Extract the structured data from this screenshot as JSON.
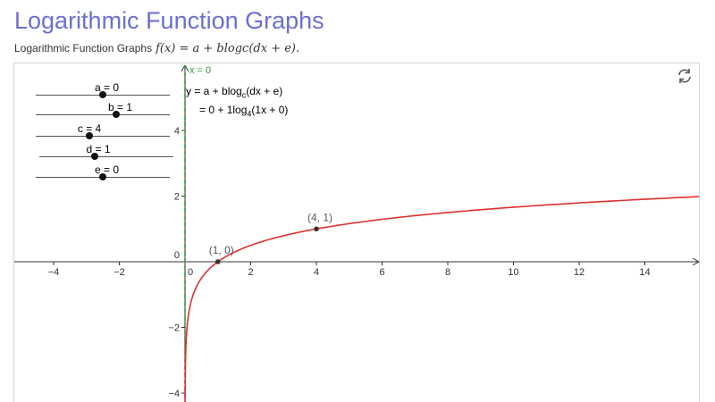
{
  "page": {
    "title": "Logarithmic Function Graphs",
    "subtitle_text": "Logarithmic Function Graphs",
    "subtitle_formula": "f(x) = a + blogc(dx + e)."
  },
  "applet": {
    "refresh_icon": "refresh-icon",
    "equation_line_1_prefix": "y = a + blog",
    "equation_line_1_sub": "c",
    "equation_line_1_suffix": "(dx + e)",
    "equation_line_2_prefix": "= 0 + 1log",
    "equation_line_2_sub": "4",
    "equation_line_2_suffix": "(1x + 0)",
    "sliders": [
      {
        "label": "a = 0",
        "value": 0
      },
      {
        "label": "b = 1",
        "value": 1
      },
      {
        "label": "c = 4",
        "value": 4
      },
      {
        "label": "d = 1",
        "value": 1
      },
      {
        "label": "e = 0",
        "value": 0
      }
    ],
    "asymptote_label": "x = 0",
    "colors": {
      "curve": "#e03030",
      "asymptote": "#2e9a2e",
      "title": "#6b6fd4"
    }
  },
  "chart_data": {
    "type": "line",
    "function": "y = 0 + 1*log4(1x + 0)",
    "xlim": [
      -5,
      15.5
    ],
    "ylim": [
      -4.3,
      6
    ],
    "x_ticks": [
      -4,
      -2,
      0,
      2,
      4,
      6,
      8,
      10,
      12,
      14
    ],
    "x_tick_labels": [
      "−4",
      "−2",
      "0",
      "2",
      "4",
      "6",
      "8",
      "10",
      "12",
      "14"
    ],
    "y_ticks": [
      -4,
      -2,
      0,
      2,
      4
    ],
    "y_tick_labels": [
      "−4",
      "−2",
      "0",
      "2",
      "4"
    ],
    "points": [
      {
        "x": 1,
        "y": 0,
        "label": "(1, 0)"
      },
      {
        "x": 4,
        "y": 1,
        "label": "(4, 1)"
      }
    ],
    "asymptote_x": 0,
    "grid": false
  }
}
